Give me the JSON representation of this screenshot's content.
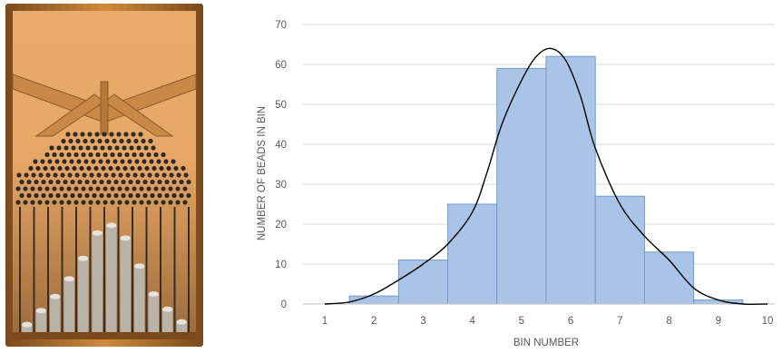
{
  "photo": {
    "subject": "galton-board",
    "colors": {
      "frame": "#d08a3c",
      "frame_dark": "#7a4a1c",
      "wood": "#e8a765",
      "pegs": "#2e2a26",
      "beads": "#b9b3aa"
    },
    "bead_levels": [
      0.06,
      0.17,
      0.28,
      0.42,
      0.58,
      0.78,
      0.84,
      0.74,
      0.52,
      0.3,
      0.18,
      0.08
    ]
  },
  "chart_data": {
    "type": "bar",
    "title": "",
    "xlabel": "BIN NUMBER",
    "ylabel": "NUMBER OF BEADS IN BIN",
    "categories": [
      2,
      3,
      4,
      5,
      6,
      7,
      8,
      9
    ],
    "values": [
      2,
      11,
      25,
      59,
      62,
      27,
      13,
      1
    ],
    "xlim": [
      1,
      10
    ],
    "ylim": [
      0,
      70
    ],
    "x_ticks": [
      "1",
      "2",
      "3",
      "4",
      "5",
      "6",
      "7",
      "8",
      "9",
      "10"
    ],
    "y_ticks": [
      "0",
      "10",
      "20",
      "30",
      "40",
      "50",
      "60",
      "70"
    ],
    "grid": true,
    "bar_color": "#a9c4e6",
    "bar_edge_color": "#6f9bd0",
    "curve": {
      "type": "smoothed-density",
      "color": "#000000",
      "x": [
        1.0,
        1.5,
        2.0,
        2.5,
        3.0,
        3.5,
        4.0,
        4.3,
        4.6,
        5.0,
        5.3,
        5.6,
        5.9,
        6.2,
        6.5,
        7.0,
        7.5,
        8.0,
        8.5,
        9.0,
        9.5,
        10.0
      ],
      "y": [
        0,
        0.5,
        2.5,
        6,
        10,
        15,
        23,
        33,
        45,
        56,
        62,
        64,
        61,
        52,
        39,
        25,
        17,
        11,
        4,
        1,
        0,
        0
      ]
    }
  }
}
